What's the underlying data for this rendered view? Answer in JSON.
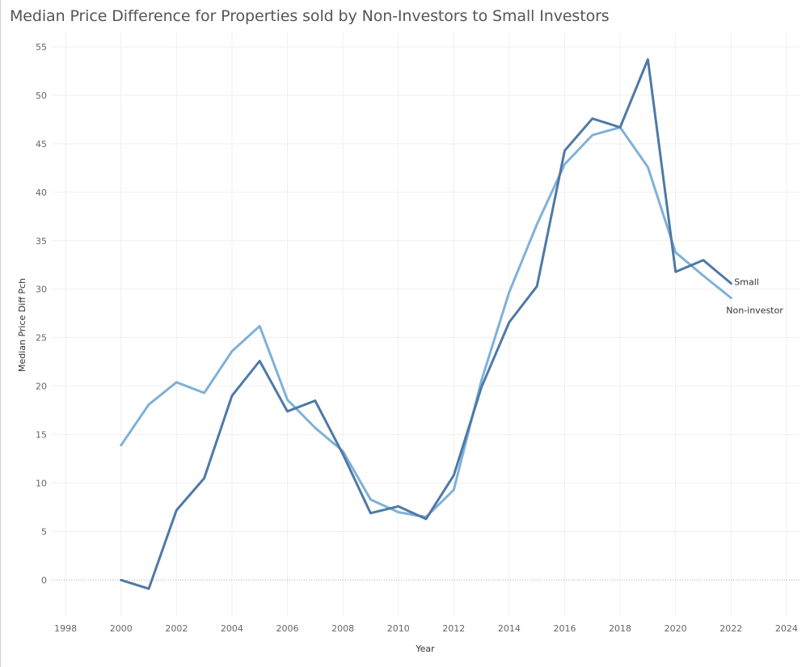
{
  "title": "Median Price Difference for Properties sold by Non-Investors to Small Investors",
  "colors": {
    "small": "#4e79a7",
    "non_investor": "#7fb1d8",
    "grid": "#efefef",
    "zero_line": "#b0b0b0"
  },
  "chart_data": {
    "type": "line",
    "title": "Median Price Difference for Properties sold by Non-Investors to Small Investors",
    "xlabel": "Year",
    "ylabel": "Median Price Diff Pch",
    "xlim": [
      1997.5,
      2024.5
    ],
    "ylim": [
      -3.8,
      56.5
    ],
    "xticks": [
      1998,
      2000,
      2002,
      2004,
      2006,
      2008,
      2010,
      2012,
      2014,
      2016,
      2018,
      2020,
      2022,
      2024
    ],
    "yticks": [
      0,
      5,
      10,
      15,
      20,
      25,
      30,
      35,
      40,
      45,
      50,
      55
    ],
    "grid": true,
    "legend": "direct labels at line ends",
    "x": [
      2000,
      2001,
      2002,
      2003,
      2004,
      2005,
      2006,
      2007,
      2008,
      2009,
      2010,
      2011,
      2012,
      2013,
      2014,
      2015,
      2016,
      2017,
      2018,
      2019,
      2020,
      2021,
      2022
    ],
    "series": [
      {
        "name": "Small",
        "key": "small",
        "values": [
          0.0,
          -0.9,
          7.2,
          10.5,
          19.0,
          22.6,
          17.4,
          18.5,
          13.0,
          6.9,
          7.6,
          6.3,
          10.8,
          19.9,
          26.6,
          30.3,
          44.3,
          47.6,
          46.7,
          53.7,
          31.8,
          33.0,
          30.6
        ]
      },
      {
        "name": "Non-investor",
        "key": "non_investor",
        "values": [
          13.9,
          18.1,
          20.4,
          19.3,
          23.6,
          26.2,
          18.6,
          15.7,
          13.3,
          8.3,
          7.0,
          6.5,
          9.3,
          20.6,
          29.7,
          36.7,
          42.9,
          45.9,
          46.7,
          42.6,
          33.8,
          31.4,
          29.1
        ]
      }
    ]
  }
}
